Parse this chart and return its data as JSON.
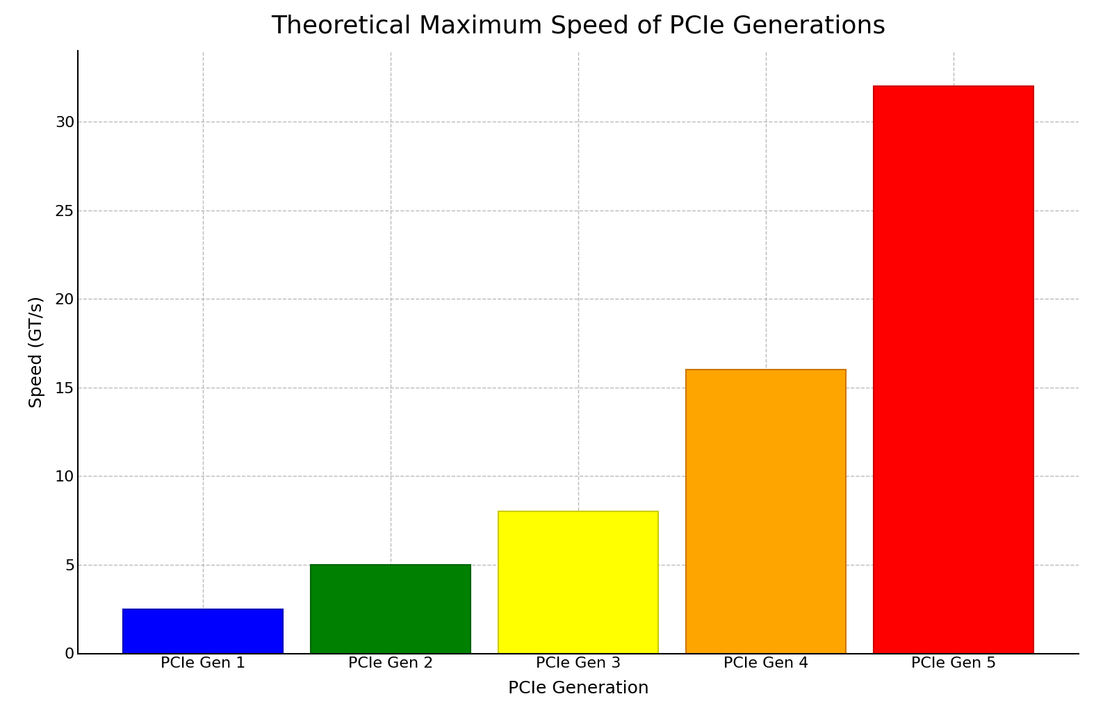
{
  "title": "Theoretical Maximum Speed of PCIe Generations",
  "xlabel": "PCIe Generation",
  "ylabel": "Speed (GT/s)",
  "categories": [
    "PCIe Gen 1",
    "PCIe Gen 2",
    "PCIe Gen 3",
    "PCIe Gen 4",
    "PCIe Gen 5"
  ],
  "values": [
    2.5,
    5.0,
    8.0,
    16.0,
    32.0
  ],
  "bar_colors": [
    "#0000ff",
    "#008000",
    "#ffff00",
    "#ffa500",
    "#ff0000"
  ],
  "bar_edgecolors": [
    "#0000bb",
    "#006600",
    "#cccc00",
    "#cc7700",
    "#cc0000"
  ],
  "ylim": [
    0,
    34
  ],
  "yticks": [
    0,
    5,
    10,
    15,
    20,
    25,
    30
  ],
  "grid_color": "#aaaaaa",
  "grid_linestyle": "--",
  "grid_alpha": 0.8,
  "background_color": "#ffffff",
  "title_fontsize": 26,
  "axis_label_fontsize": 18,
  "tick_fontsize": 16,
  "bar_width": 0.85
}
